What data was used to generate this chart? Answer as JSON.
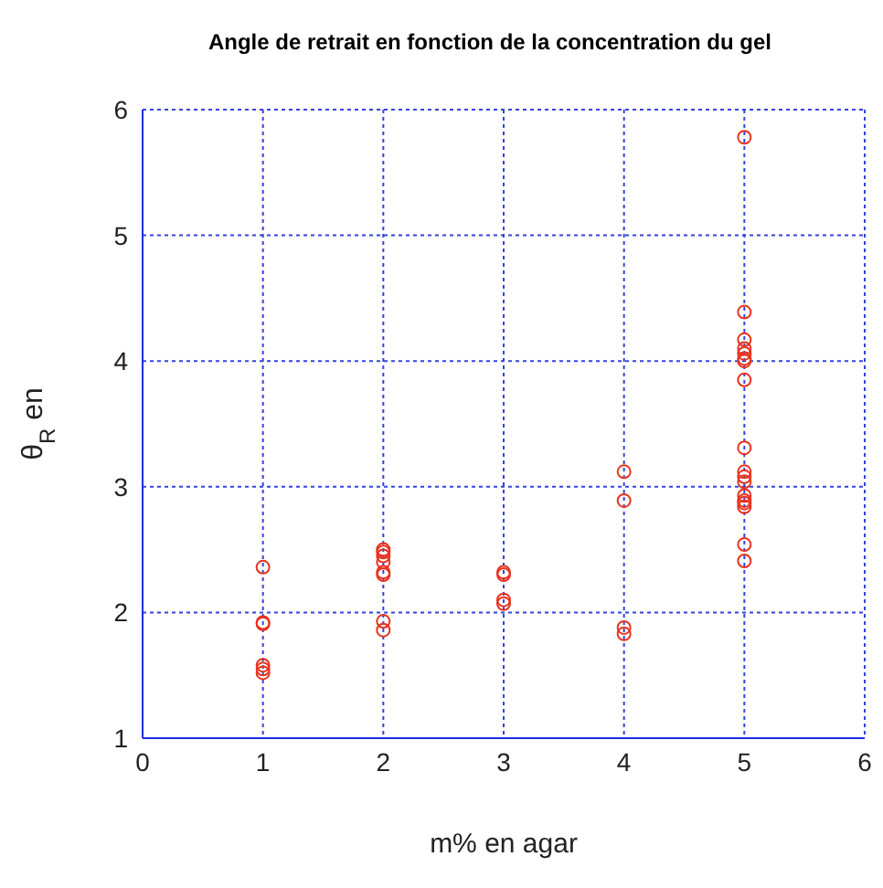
{
  "chart_data": {
    "type": "scatter",
    "title": "Angle de retrait en fonction de la concentration du gel",
    "xlabel": "m% en agar",
    "ylabel": "θ$_{R}$ en",
    "x": [
      1,
      1,
      1,
      1,
      1,
      1,
      2,
      2,
      2,
      2,
      2,
      2,
      2,
      2,
      3,
      3,
      3,
      3,
      4,
      4,
      4,
      4,
      5,
      5,
      5,
      5,
      5,
      5,
      5,
      5,
      5,
      5,
      5,
      5,
      5,
      5,
      5,
      5,
      5,
      5
    ],
    "series": [
      {
        "color": "#e8321e",
        "values": [
          2.36,
          1.91,
          1.92,
          1.58,
          1.55,
          1.52,
          2.5,
          2.48,
          2.45,
          2.4,
          2.32,
          2.3,
          1.93,
          1.86,
          2.32,
          2.3,
          2.1,
          2.07,
          3.12,
          2.89,
          1.88,
          1.83,
          5.78,
          4.39,
          4.17,
          4.1,
          4.06,
          4.02,
          4.0,
          3.85,
          3.31,
          3.12,
          3.08,
          3.04,
          2.93,
          2.89,
          2.87,
          2.84,
          2.54,
          2.41
        ]
      }
    ],
    "xlim": [
      0,
      6
    ],
    "xticks": [
      0,
      1,
      2,
      3,
      4,
      5,
      6
    ],
    "ylim": [
      1,
      6
    ],
    "yticks": [
      1,
      2,
      3,
      4,
      5,
      6
    ],
    "grid": true,
    "marker": "circle"
  }
}
